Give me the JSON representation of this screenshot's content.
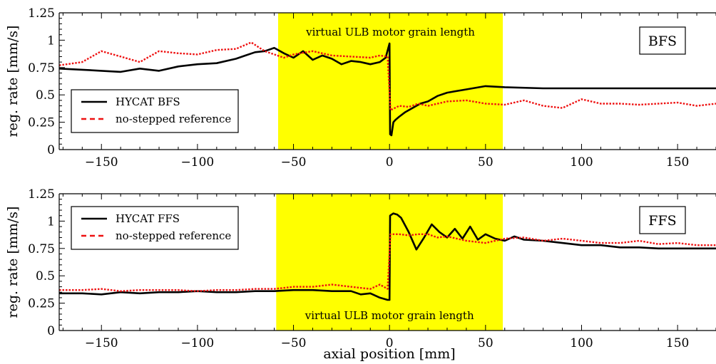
{
  "chart_data": [
    {
      "type": "line",
      "panel": "top",
      "title": "",
      "xlabel": "",
      "ylabel": "reg. rate [mm/s]",
      "xlim": [
        -172,
        170
      ],
      "ylim": [
        0,
        1.25
      ],
      "xticks": [
        -150,
        -100,
        -50,
        0,
        50,
        100,
        150
      ],
      "xtick_labels": [
        "−150",
        "−100",
        "−50",
        "0",
        "50",
        "100",
        "150"
      ],
      "yticks": [
        0,
        0.25,
        0.5,
        0.75,
        1,
        1.25
      ],
      "ytick_labels": [
        "0",
        "0.25",
        "0.5",
        "0.75",
        "1",
        "1.25"
      ],
      "grid": false,
      "legend_position": "bottom-left",
      "panel_tag": "BFS",
      "shaded_region": {
        "x": [
          -58,
          59
        ],
        "color": "#ffff00",
        "label": "virtual ULB motor grain length"
      },
      "series": [
        {
          "name": "HYCAT BFS",
          "color": "#000000",
          "style": "solid",
          "x": [
            -172,
            -160,
            -150,
            -140,
            -130,
            -120,
            -110,
            -100,
            -90,
            -80,
            -75,
            -70,
            -65,
            -60,
            -55,
            -50,
            -45,
            -40,
            -35,
            -30,
            -25,
            -20,
            -15,
            -10,
            -5,
            -2,
            0,
            0.3,
            1,
            2,
            3,
            5,
            8,
            12,
            16,
            20,
            25,
            30,
            40,
            50,
            60,
            80,
            100,
            120,
            140,
            160,
            170
          ],
          "y": [
            0.74,
            0.73,
            0.72,
            0.71,
            0.74,
            0.72,
            0.76,
            0.78,
            0.79,
            0.83,
            0.86,
            0.89,
            0.9,
            0.93,
            0.88,
            0.84,
            0.9,
            0.82,
            0.86,
            0.83,
            0.78,
            0.81,
            0.8,
            0.78,
            0.8,
            0.84,
            0.97,
            0.14,
            0.13,
            0.25,
            0.27,
            0.3,
            0.34,
            0.38,
            0.42,
            0.44,
            0.49,
            0.52,
            0.55,
            0.58,
            0.57,
            0.56,
            0.56,
            0.56,
            0.56,
            0.56,
            0.56
          ]
        },
        {
          "name": "no-stepped reference",
          "color": "#ee1111",
          "style": "dotted",
          "x": [
            -172,
            -160,
            -150,
            -140,
            -130,
            -120,
            -110,
            -100,
            -90,
            -80,
            -72,
            -65,
            -55,
            -50,
            -40,
            -30,
            -20,
            -10,
            -5,
            -1,
            0.5,
            5,
            10,
            15,
            20,
            30,
            40,
            50,
            60,
            70,
            80,
            90,
            100,
            110,
            120,
            130,
            140,
            150,
            160,
            170
          ],
          "y": [
            0.77,
            0.8,
            0.9,
            0.85,
            0.8,
            0.9,
            0.88,
            0.87,
            0.91,
            0.92,
            0.98,
            0.9,
            0.84,
            0.87,
            0.9,
            0.86,
            0.85,
            0.84,
            0.86,
            0.85,
            0.36,
            0.4,
            0.39,
            0.42,
            0.4,
            0.44,
            0.45,
            0.42,
            0.41,
            0.45,
            0.4,
            0.38,
            0.46,
            0.42,
            0.42,
            0.41,
            0.42,
            0.43,
            0.4,
            0.42
          ]
        }
      ]
    },
    {
      "type": "line",
      "panel": "bottom",
      "title": "",
      "xlabel": "axial position [mm]",
      "ylabel": "reg. rate [mm/s]",
      "xlim": [
        -172,
        170
      ],
      "ylim": [
        0,
        1.25
      ],
      "xticks": [
        -150,
        -100,
        -50,
        0,
        50,
        100,
        150
      ],
      "xtick_labels": [
        "−150",
        "−100",
        "−50",
        "0",
        "50",
        "100",
        "150"
      ],
      "yticks": [
        0,
        0.25,
        0.5,
        0.75,
        1,
        1.25
      ],
      "ytick_labels": [
        "0",
        "0.25",
        "0.5",
        "0.75",
        "1",
        "1.25"
      ],
      "grid": false,
      "legend_position": "top-left",
      "panel_tag": "FFS",
      "shaded_region": {
        "x": [
          -59,
          59
        ],
        "color": "#ffff00",
        "label": "virtual ULB motor grain length"
      },
      "series": [
        {
          "name": "HYCAT FFS",
          "color": "#000000",
          "style": "solid",
          "x": [
            -172,
            -160,
            -150,
            -140,
            -130,
            -120,
            -110,
            -100,
            -90,
            -80,
            -70,
            -60,
            -50,
            -40,
            -30,
            -20,
            -15,
            -10,
            -5,
            -1,
            0,
            0.3,
            2,
            4,
            6,
            10,
            14,
            18,
            22,
            26,
            30,
            34,
            38,
            42,
            46,
            50,
            55,
            60,
            65,
            70,
            80,
            90,
            100,
            110,
            120,
            130,
            140,
            150,
            160,
            170
          ],
          "y": [
            0.34,
            0.34,
            0.33,
            0.35,
            0.34,
            0.35,
            0.35,
            0.36,
            0.35,
            0.35,
            0.36,
            0.36,
            0.37,
            0.37,
            0.36,
            0.36,
            0.33,
            0.34,
            0.3,
            0.28,
            0.28,
            1.05,
            1.07,
            1.06,
            1.03,
            0.9,
            0.74,
            0.85,
            0.97,
            0.9,
            0.85,
            0.93,
            0.84,
            0.95,
            0.83,
            0.88,
            0.84,
            0.82,
            0.86,
            0.83,
            0.82,
            0.8,
            0.78,
            0.78,
            0.76,
            0.76,
            0.75,
            0.75,
            0.75,
            0.75
          ]
        },
        {
          "name": "no-stepped reference",
          "color": "#ee1111",
          "style": "dotted",
          "x": [
            -172,
            -160,
            -150,
            -140,
            -130,
            -120,
            -110,
            -100,
            -90,
            -80,
            -70,
            -60,
            -50,
            -40,
            -30,
            -20,
            -10,
            -5,
            -1,
            0.5,
            5,
            10,
            15,
            20,
            25,
            30,
            40,
            50,
            60,
            70,
            80,
            90,
            100,
            110,
            120,
            130,
            140,
            150,
            160,
            170
          ],
          "y": [
            0.37,
            0.37,
            0.38,
            0.36,
            0.37,
            0.37,
            0.37,
            0.36,
            0.37,
            0.37,
            0.38,
            0.38,
            0.4,
            0.4,
            0.42,
            0.4,
            0.38,
            0.42,
            0.38,
            0.88,
            0.88,
            0.87,
            0.88,
            0.88,
            0.85,
            0.86,
            0.82,
            0.8,
            0.84,
            0.85,
            0.82,
            0.84,
            0.82,
            0.8,
            0.8,
            0.82,
            0.79,
            0.8,
            0.78,
            0.78
          ]
        }
      ]
    }
  ]
}
